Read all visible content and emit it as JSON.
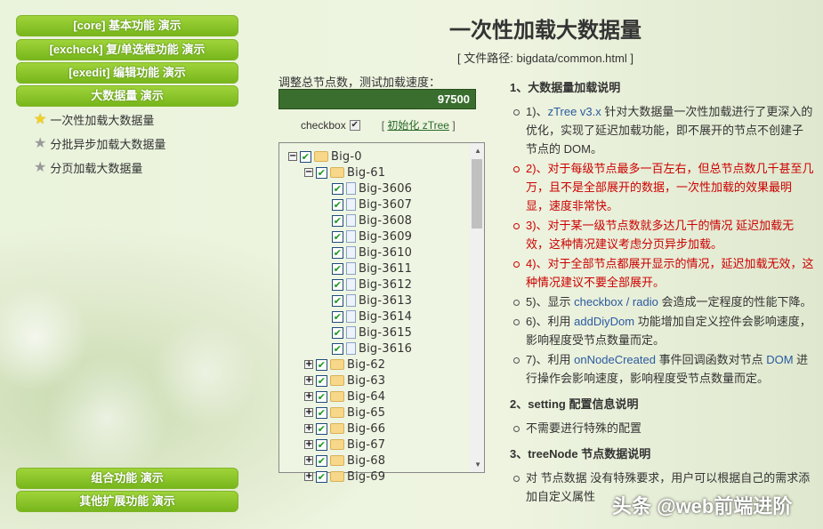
{
  "menu": {
    "buttons": [
      "[core] 基本功能 演示",
      "[excheck] 复/单选框功能 演示",
      "[exedit] 编辑功能 演示",
      "大数据量 演示"
    ],
    "demos": [
      {
        "label": "一次性加载大数据量",
        "icon": "star-yellow",
        "active": true
      },
      {
        "label": "分批异步加载大数据量",
        "icon": "star-gray"
      },
      {
        "label": "分页加载大数据量",
        "icon": "star-gray"
      }
    ],
    "bottom_buttons": [
      "组合功能 演示",
      "其他扩展功能 演示"
    ]
  },
  "header": {
    "title": "一次性加载大数据量",
    "path": "[ 文件路径: bigdata/common.html ]"
  },
  "controls": {
    "label": "调整总节点数，测试加载速度：",
    "value": "97500",
    "checkbox_label": "checkbox",
    "checkbox_checked": true,
    "init_prefix": "[",
    "init_link": "初始化 zTree",
    "init_suffix": "]"
  },
  "tree": [
    {
      "name": "Big-0",
      "level": 0,
      "type": "folder",
      "open": true
    },
    {
      "name": "Big-61",
      "level": 1,
      "type": "folder",
      "open": true
    },
    {
      "name": "Big-3606",
      "level": 2,
      "type": "file"
    },
    {
      "name": "Big-3607",
      "level": 2,
      "type": "file"
    },
    {
      "name": "Big-3608",
      "level": 2,
      "type": "file"
    },
    {
      "name": "Big-3609",
      "level": 2,
      "type": "file"
    },
    {
      "name": "Big-3610",
      "level": 2,
      "type": "file"
    },
    {
      "name": "Big-3611",
      "level": 2,
      "type": "file"
    },
    {
      "name": "Big-3612",
      "level": 2,
      "type": "file"
    },
    {
      "name": "Big-3613",
      "level": 2,
      "type": "file"
    },
    {
      "name": "Big-3614",
      "level": 2,
      "type": "file"
    },
    {
      "name": "Big-3615",
      "level": 2,
      "type": "file"
    },
    {
      "name": "Big-3616",
      "level": 2,
      "type": "file"
    },
    {
      "name": "Big-62",
      "level": 1,
      "type": "folder"
    },
    {
      "name": "Big-63",
      "level": 1,
      "type": "folder"
    },
    {
      "name": "Big-64",
      "level": 1,
      "type": "folder"
    },
    {
      "name": "Big-65",
      "level": 1,
      "type": "folder"
    },
    {
      "name": "Big-66",
      "level": 1,
      "type": "folder"
    },
    {
      "name": "Big-67",
      "level": 1,
      "type": "folder"
    },
    {
      "name": "Big-68",
      "level": 1,
      "type": "folder"
    },
    {
      "name": "Big-69",
      "level": 1,
      "type": "folder"
    }
  ],
  "info": {
    "h1": "1、大数据量加载说明",
    "items1": [
      {
        "parts": [
          "1)、",
          "zTree v3.x",
          " 针对大数据量一次性加载进行了更深入的优化，实现了延迟加载功能，即不展开的节点不创建子节点的 DOM。"
        ],
        "red": false
      },
      {
        "parts": [
          "2)、对于每级节点最多一百左右，但总节点数几千甚至几万，且不是全部展开的数据，一次性加载的效果最明显，速度非常快。"
        ],
        "red": true
      },
      {
        "parts": [
          "3)、对于某一级节点数就多达几千的情况 延迟加载无效，这种情况建议考虑分页异步加载。"
        ],
        "red": true
      },
      {
        "parts": [
          "4)、对于全部节点都展开显示的情况，延迟加载无效，这种情况建议不要全部展开。"
        ],
        "red": true
      },
      {
        "parts": [
          "5)、显示 ",
          "checkbox / radio",
          " 会造成一定程度的性能下降。"
        ],
        "red": false
      },
      {
        "parts": [
          "6)、利用 ",
          "addDiyDom",
          " 功能增加自定义控件会影响速度，影响程度受节点数量而定。"
        ],
        "red": false
      },
      {
        "parts": [
          "7)、利用 ",
          "onNodeCreated",
          " 事件回调函数对节点 ",
          "DOM",
          " 进行操作会影响速度，影响程度受节点数量而定。"
        ],
        "red": false
      }
    ],
    "h2": "2、setting 配置信息说明",
    "items2": [
      "不需要进行特殊的配置"
    ],
    "h3": "3、treeNode 节点数据说明",
    "items3": [
      "对 节点数据 没有特殊要求，用户可以根据自己的需求添加自定义属性"
    ]
  },
  "watermark": "头条 @web前端进阶"
}
